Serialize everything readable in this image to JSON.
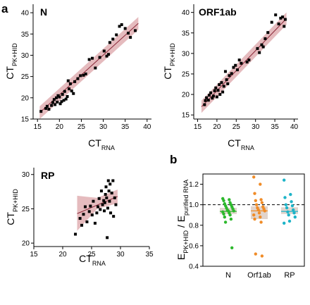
{
  "panel_labels": {
    "a": "a",
    "b": "b"
  },
  "colors": {
    "band": "#dca4a8",
    "fit_line": "#8b2a3a",
    "point": "#000000",
    "N": "#2db82d",
    "Orf1ab": "#f08c28",
    "RP": "#1eb4c8",
    "box": "#d9c9bf"
  },
  "chart_data": [
    {
      "type": "scatter",
      "panel": "a",
      "gene_label": "N",
      "xlabel_main": "CT",
      "xlabel_sub": "RNA",
      "ylabel_main": "CT",
      "ylabel_sub": "PK+HID",
      "xlim": [
        14,
        41
      ],
      "ylim": [
        15,
        42
      ],
      "xticks": [
        15,
        20,
        25,
        30,
        35,
        40
      ],
      "yticks": [
        15,
        20,
        25,
        30,
        35,
        40
      ],
      "fit": {
        "x": [
          15.5,
          38
        ],
        "y": [
          16.5,
          37.5
        ]
      },
      "points": [
        [
          15.8,
          16.8
        ],
        [
          16.9,
          17.5
        ],
        [
          17.2,
          18.0
        ],
        [
          17.6,
          17.3
        ],
        [
          18.2,
          18.2
        ],
        [
          18.5,
          18.9
        ],
        [
          18.8,
          19.6
        ],
        [
          19.0,
          18.4
        ],
        [
          19.3,
          20.0
        ],
        [
          19.5,
          19.0
        ],
        [
          19.7,
          20.5
        ],
        [
          20.0,
          20.2
        ],
        [
          20.2,
          18.6
        ],
        [
          20.5,
          19.1
        ],
        [
          20.7,
          20.8
        ],
        [
          21.0,
          19.4
        ],
        [
          21.2,
          21.5
        ],
        [
          21.5,
          19.7
        ],
        [
          21.8,
          20.3
        ],
        [
          22.0,
          24.0
        ],
        [
          22.2,
          22.1
        ],
        [
          22.5,
          23.3
        ],
        [
          22.8,
          21.6
        ],
        [
          23.2,
          21.0
        ],
        [
          23.5,
          23.8
        ],
        [
          24.2,
          24.5
        ],
        [
          24.8,
          25.2
        ],
        [
          25.5,
          25.3
        ],
        [
          26.0,
          25.6
        ],
        [
          26.8,
          29.0
        ],
        [
          27.5,
          29.3
        ],
        [
          28.2,
          27.0
        ],
        [
          29.2,
          29.5
        ],
        [
          30.2,
          31.0
        ],
        [
          30.8,
          29.8
        ],
        [
          31.2,
          30.2
        ],
        [
          31.5,
          33.0
        ],
        [
          32.2,
          33.8
        ],
        [
          33.0,
          34.8
        ],
        [
          33.7,
          36.8
        ],
        [
          34.2,
          37.2
        ],
        [
          35.0,
          36.3
        ],
        [
          35.7,
          35.2
        ],
        [
          36.2,
          34.2
        ],
        [
          37.3,
          35.8
        ]
      ]
    },
    {
      "type": "scatter",
      "panel": "a",
      "gene_label": "ORF1ab",
      "xlabel_main": "CT",
      "xlabel_sub": "RNA",
      "ylabel_main": "CT",
      "ylabel_sub": "PK+HID",
      "xlim": [
        14,
        41
      ],
      "ylim": [
        14,
        42
      ],
      "xticks": [
        15,
        20,
        25,
        30,
        35,
        40
      ],
      "yticks": [
        15,
        20,
        25,
        30,
        35,
        40
      ],
      "fit": {
        "x": [
          16,
          38
        ],
        "y": [
          17,
          38.5
        ]
      },
      "points": [
        [
          16.8,
          17.5
        ],
        [
          17.0,
          18.5
        ],
        [
          17.3,
          19.2
        ],
        [
          17.8,
          18.6
        ],
        [
          18.0,
          19.8
        ],
        [
          18.4,
          20.4
        ],
        [
          18.8,
          19.1
        ],
        [
          19.1,
          19.6
        ],
        [
          19.4,
          20.9
        ],
        [
          19.7,
          21.6
        ],
        [
          20.0,
          19.4
        ],
        [
          20.3,
          21.0
        ],
        [
          20.6,
          22.4
        ],
        [
          20.8,
          20.0
        ],
        [
          21.2,
          22.9
        ],
        [
          21.5,
          20.6
        ],
        [
          21.8,
          22.0
        ],
        [
          22.2,
          25.6
        ],
        [
          22.5,
          23.6
        ],
        [
          22.8,
          22.6
        ],
        [
          23.2,
          24.6
        ],
        [
          23.8,
          25.1
        ],
        [
          24.3,
          26.6
        ],
        [
          24.8,
          27.1
        ],
        [
          25.3,
          26.0
        ],
        [
          25.8,
          28.4
        ],
        [
          26.3,
          27.6
        ],
        [
          27.8,
          27.9
        ],
        [
          28.3,
          28.4
        ],
        [
          30.5,
          31.2
        ],
        [
          31.0,
          30.2
        ],
        [
          31.6,
          32.1
        ],
        [
          32.0,
          31.6
        ],
        [
          32.5,
          33.6
        ],
        [
          33.2,
          35.1
        ],
        [
          34.2,
          37.6
        ],
        [
          35.2,
          39.4
        ],
        [
          36.0,
          37.2
        ],
        [
          36.5,
          38.6
        ],
        [
          37.0,
          38.9
        ],
        [
          37.4,
          36.6
        ],
        [
          37.7,
          38.3
        ]
      ]
    },
    {
      "type": "scatter",
      "panel": "a",
      "gene_label": "RP",
      "xlabel_main": "CT",
      "xlabel_sub": "RNA",
      "ylabel_main": "CT",
      "ylabel_sub": "PK+HID",
      "xlim": [
        15,
        35
      ],
      "ylim": [
        19.5,
        31
      ],
      "xticks": [
        15,
        20,
        25,
        30,
        35
      ],
      "yticks": [
        20,
        25,
        30
      ],
      "fit": {
        "x": [
          22.5,
          29.5
        ],
        "y": [
          24.3,
          26.8
        ]
      },
      "band": {
        "x": [
          22.5,
          26,
          29.5
        ],
        "upper": [
          26.9,
          26.6,
          27.8
        ],
        "lower": [
          21.8,
          25.0,
          25.8
        ]
      },
      "points": [
        [
          22.2,
          21.3
        ],
        [
          23.0,
          23.6
        ],
        [
          23.3,
          22.6
        ],
        [
          23.6,
          24.2
        ],
        [
          23.9,
          25.3
        ],
        [
          24.2,
          23.1
        ],
        [
          24.6,
          24.6
        ],
        [
          24.8,
          25.4
        ],
        [
          25.1,
          24.1
        ],
        [
          25.3,
          26.1
        ],
        [
          25.6,
          22.9
        ],
        [
          25.9,
          24.4
        ],
        [
          26.1,
          25.3
        ],
        [
          26.3,
          26.5
        ],
        [
          26.5,
          24.9
        ],
        [
          26.7,
          27.6
        ],
        [
          26.9,
          25.6
        ],
        [
          27.1,
          26.2
        ],
        [
          27.2,
          24.7
        ],
        [
          27.3,
          25.9
        ],
        [
          27.4,
          27.1
        ],
        [
          27.5,
          28.2
        ],
        [
          27.6,
          26.6
        ],
        [
          27.7,
          20.8
        ],
        [
          27.8,
          25.1
        ],
        [
          27.9,
          29.1
        ],
        [
          28.0,
          27.6
        ],
        [
          28.1,
          26.1
        ],
        [
          28.2,
          28.6
        ],
        [
          28.3,
          24.4
        ],
        [
          28.5,
          27.3
        ],
        [
          28.7,
          29.1
        ],
        [
          28.8,
          23.9
        ],
        [
          29.0,
          26.6
        ],
        [
          29.2,
          25.6
        ]
      ]
    },
    {
      "type": "scatter",
      "panel": "b",
      "categories": [
        "N",
        "Orf1ab",
        "RP"
      ],
      "ylabel_main": "E",
      "ylabel_sub1": "PK+HID",
      "ylabel_sep": " / E",
      "ylabel_sub2": "purified RNA",
      "ylim": [
        0.4,
        1.3
      ],
      "yticks": [
        0.4,
        0.6,
        0.8,
        1.0,
        1.2
      ],
      "reference_line": 1.0,
      "boxes": [
        {
          "category": "N",
          "q1": 0.91,
          "median": 0.935,
          "q3": 0.97
        },
        {
          "category": "Orf1ab",
          "q1": 0.86,
          "median": 0.94,
          "q3": 0.985
        },
        {
          "category": "RP",
          "q1": 0.91,
          "median": 0.935,
          "q3": 0.975
        }
      ],
      "series": [
        {
          "category": "N",
          "values": [
            1.06,
            1.05,
            1.04,
            1.02,
            1.01,
            1.0,
            0.99,
            0.98,
            0.97,
            0.96,
            0.95,
            0.94,
            0.94,
            0.93,
            0.92,
            0.91,
            0.9,
            0.88,
            0.86,
            0.83,
            0.58
          ]
        },
        {
          "category": "Orf1ab",
          "values": [
            1.27,
            1.2,
            1.11,
            1.05,
            1.04,
            1.02,
            1.0,
            0.98,
            0.97,
            0.96,
            0.95,
            0.94,
            0.92,
            0.9,
            0.88,
            0.86,
            0.83,
            0.52,
            0.5
          ]
        },
        {
          "category": "RP",
          "values": [
            1.24,
            1.1,
            1.07,
            1.03,
            1.0,
            0.99,
            0.97,
            0.95,
            0.93,
            0.92,
            0.9,
            0.88,
            0.84,
            0.82
          ]
        }
      ]
    }
  ]
}
